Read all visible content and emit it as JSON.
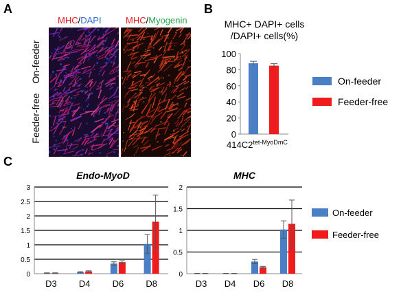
{
  "panels": {
    "a": {
      "letter": "A",
      "col1_header": {
        "part1": "MHC",
        "sep": "/",
        "part2": "DAPI"
      },
      "col2_header": {
        "part1": "MHC",
        "sep": "/",
        "part2": "Myogenin"
      },
      "row_labels": [
        "On-feeder",
        "Feeder-free"
      ]
    },
    "b": {
      "letter": "B"
    },
    "c": {
      "letter": "C"
    }
  },
  "colors": {
    "on_feeder": "#4a7fc6",
    "feeder_free": "#ee1c1c",
    "mhc_text": "#ee1c1c",
    "dapi_text": "#2f6fd1",
    "myogenin_text": "#22a84a"
  },
  "legend_b": [
    "On-feeder",
    "Feeder-free"
  ],
  "legend_c": [
    "On-feeder",
    "Feeder-free"
  ],
  "chart_data": [
    {
      "type": "bar",
      "title_line1": "MHC+ DAPI+ cells",
      "title_line2": "/DAPI+ cells(%)",
      "xlabel_main": "414C2",
      "xlabel_sup": "tet-MyoDmC",
      "categories": [
        "On-feeder",
        "Feeder-free"
      ],
      "values": [
        88,
        85
      ],
      "errors": [
        2.5,
        2.5
      ],
      "ylim": [
        0,
        100
      ],
      "yticks": [
        "0",
        "20",
        "40",
        "60",
        "80",
        "100"
      ],
      "grid": false
    },
    {
      "type": "bar",
      "title": "Endo-MyoD",
      "categories": [
        "D3",
        "D4",
        "D6",
        "D8"
      ],
      "series": [
        {
          "name": "On-feeder",
          "values": [
            0.02,
            0.05,
            0.35,
            1.03
          ],
          "errors": [
            0.01,
            0.02,
            0.06,
            0.32
          ]
        },
        {
          "name": "Feeder-free",
          "values": [
            0.02,
            0.08,
            0.4,
            1.8
          ],
          "errors": [
            0.01,
            0.02,
            0.05,
            0.92
          ]
        }
      ],
      "ylim": [
        0,
        3
      ],
      "yticks": [
        "0",
        "0.5",
        "1",
        "1.5",
        "2",
        "2.5",
        "3"
      ],
      "grid": true
    },
    {
      "type": "bar",
      "title": "MHC",
      "categories": [
        "D3",
        "D4",
        "D6",
        "D8"
      ],
      "series": [
        {
          "name": "On-feeder",
          "values": [
            0.005,
            0.005,
            0.28,
            1.02
          ],
          "errors": [
            0.003,
            0.003,
            0.05,
            0.2
          ]
        },
        {
          "name": "Feeder-free",
          "values": [
            0.005,
            0.005,
            0.15,
            1.15
          ],
          "errors": [
            0.003,
            0.003,
            0.02,
            0.55
          ]
        }
      ],
      "ylim": [
        0,
        2
      ],
      "yticks": [
        "0",
        "0.5",
        "1",
        "1.5",
        "2"
      ],
      "grid": true
    }
  ]
}
